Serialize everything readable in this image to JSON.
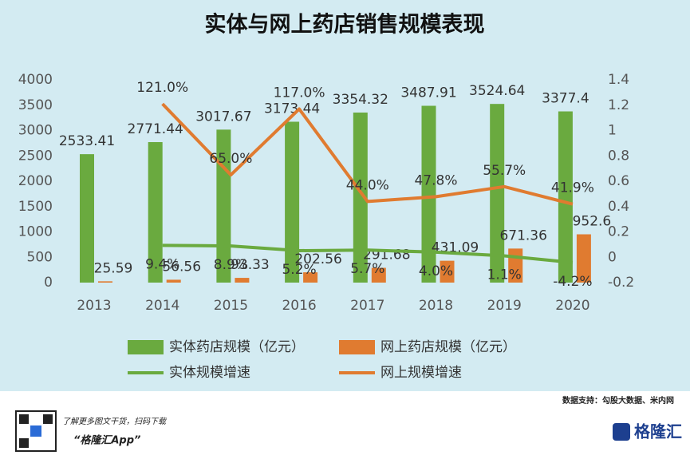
{
  "chart_data": {
    "type": "bar",
    "title": "实体与网上药店销售规模表现",
    "categories": [
      "2013",
      "2014",
      "2015",
      "2016",
      "2017",
      "2018",
      "2019",
      "2020"
    ],
    "series": [
      {
        "name": "实体药店规模（亿元）",
        "type": "bar",
        "color": "#6aaa3f",
        "values": [
          2533.41,
          2771.44,
          3017.67,
          3173.44,
          3354.32,
          3487.91,
          3524.64,
          3377.4
        ]
      },
      {
        "name": "网上药店规模（亿元）",
        "type": "bar",
        "color": "#e07b30",
        "values": [
          25.59,
          56.56,
          93.33,
          202.56,
          291.68,
          431.09,
          671.36,
          952.6
        ]
      },
      {
        "name": "实体规模增速",
        "type": "line",
        "axis": "y2",
        "color": "#6aaa3f",
        "values": [
          null,
          0.094,
          0.089,
          0.052,
          0.057,
          0.04,
          0.011,
          -0.042
        ],
        "value_labels": [
          null,
          "9.4%",
          "8.9%",
          "5.2%",
          "5.7%",
          "4.0%",
          "1.1%",
          "-4.2%"
        ]
      },
      {
        "name": "网上规模增速",
        "type": "line",
        "axis": "y2",
        "color": "#e07b30",
        "values": [
          null,
          1.21,
          0.65,
          1.17,
          0.44,
          0.478,
          0.557,
          0.419
        ],
        "value_labels": [
          null,
          "121.0%",
          "65.0%",
          "117.0%",
          "44.0%",
          "47.8%",
          "55.7%",
          "41.9%"
        ]
      }
    ],
    "ylim": [
      0,
      4000
    ],
    "yticks": [
      0,
      500,
      1000,
      1500,
      2000,
      2500,
      3000,
      3500,
      4000
    ],
    "y2lim": [
      -0.2,
      1.4
    ],
    "y2ticks": [
      -0.2,
      0,
      0.2,
      0.4,
      0.6,
      0.8,
      1,
      1.2,
      1.4
    ],
    "source": "数据支持：勾股大数据、米内网",
    "footer_note": "了解更多图文干货，扫码下载",
    "footer_app": "“格隆汇App”",
    "brand": "格隆汇"
  }
}
